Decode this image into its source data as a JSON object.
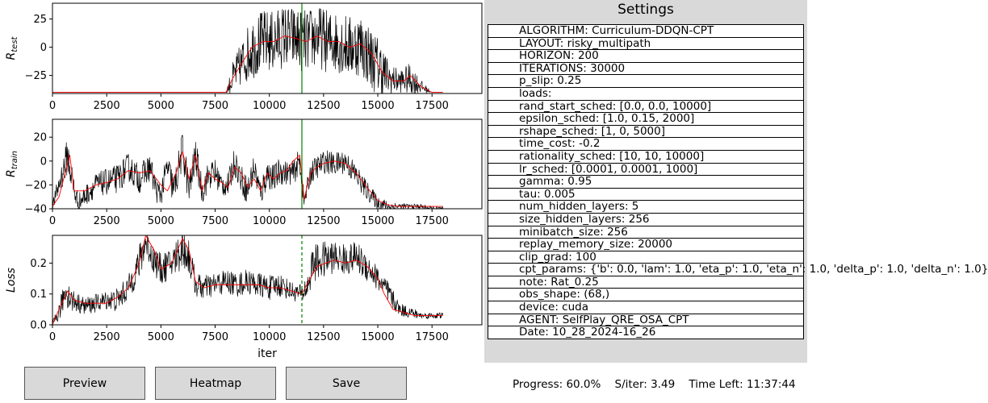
{
  "chart_data": [
    {
      "type": "line",
      "ylabel": "R_test",
      "xlim": [
        0,
        19800
      ],
      "ylim": [
        -41,
        39
      ],
      "xticks": [
        0,
        2500,
        5000,
        7500,
        10000,
        12500,
        15000,
        17500
      ],
      "yticks": [
        25,
        0,
        -25
      ],
      "marker_x": 11500,
      "marker_style": "solid",
      "series": [
        {
          "color": "#000000",
          "style": "noisy",
          "x": [
            0,
            8000,
            8300,
            8700,
            9200,
            9700,
            10200,
            10700,
            11200,
            11700,
            12200,
            12700,
            13200,
            13700,
            14200,
            14700,
            15200,
            15500,
            16000,
            16500,
            17000,
            17500,
            18000
          ],
          "y": [
            -40,
            -40,
            -28,
            -15,
            0,
            5,
            5,
            10,
            8,
            5,
            10,
            5,
            5,
            0,
            3,
            -10,
            -20,
            -28,
            -30,
            -28,
            -35,
            -40,
            -40
          ],
          "noise": [
            0,
            0,
            14,
            20,
            28,
            28,
            28,
            28,
            28,
            28,
            28,
            28,
            28,
            28,
            28,
            28,
            25,
            15,
            10,
            14,
            6,
            0,
            0
          ]
        },
        {
          "color": "#ff0000",
          "x": [
            0,
            8000,
            8300,
            8700,
            9200,
            9700,
            10200,
            10700,
            11200,
            11700,
            12200,
            12700,
            13200,
            13700,
            14200,
            14700,
            15200,
            15700,
            16200,
            16500,
            17000,
            17500,
            18000
          ],
          "y": [
            -40,
            -40,
            -28,
            -15,
            0,
            5,
            5,
            10,
            8,
            5,
            10,
            5,
            5,
            0,
            3,
            -5,
            -22,
            -30,
            -30,
            -25,
            -35,
            -40,
            -40
          ]
        }
      ]
    },
    {
      "type": "line",
      "ylabel": "R_train",
      "xlim": [
        0,
        19800
      ],
      "ylim": [
        -40,
        35
      ],
      "xticks": [
        0,
        2500,
        5000,
        7500,
        10000,
        12500,
        15000,
        17500
      ],
      "yticks": [
        20,
        0,
        -20,
        -40
      ],
      "marker_x": 11500,
      "marker_style": "solid",
      "series": [
        {
          "color": "#000000",
          "style": "noisy",
          "x": [
            0,
            300,
            700,
            1000,
            1200,
            2000,
            3000,
            3500,
            4000,
            4500,
            4800,
            5000,
            5300,
            5600,
            6000,
            6300,
            6600,
            6900,
            7200,
            7500,
            7800,
            8100,
            8400,
            8700,
            9000,
            9300,
            9600,
            9900,
            10200,
            10500,
            10800,
            11100,
            11400,
            11500,
            11600,
            11900,
            12200,
            12600,
            13000,
            13500,
            14000,
            14500,
            15000,
            15500,
            16000,
            16500,
            17000,
            17500,
            18000
          ],
          "y": [
            -38,
            -20,
            5,
            -25,
            -35,
            -20,
            -15,
            -5,
            -15,
            -5,
            -25,
            -28,
            -5,
            -25,
            10,
            -25,
            5,
            -25,
            -12,
            -10,
            -20,
            -20,
            0,
            -15,
            -25,
            -5,
            -28,
            -10,
            -15,
            -8,
            -10,
            -10,
            0,
            -15,
            -35,
            -10,
            -5,
            0,
            -3,
            0,
            -12,
            -25,
            -35,
            -38,
            -38,
            -38,
            -38,
            -40,
            -40
          ],
          "noise": [
            4,
            10,
            16,
            12,
            8,
            10,
            12,
            12,
            12,
            12,
            10,
            10,
            14,
            14,
            16,
            14,
            14,
            12,
            12,
            12,
            10,
            10,
            12,
            12,
            12,
            12,
            12,
            12,
            12,
            12,
            10,
            10,
            12,
            10,
            6,
            10,
            10,
            10,
            10,
            10,
            10,
            8,
            6,
            4,
            3,
            2,
            2,
            2,
            2
          ]
        },
        {
          "color": "#ff0000",
          "x": [
            0,
            300,
            800,
            1000,
            1500,
            2000,
            2500,
            3000,
            3500,
            4000,
            4500,
            5000,
            5300,
            5700,
            6000,
            6300,
            6600,
            6900,
            7200,
            7500,
            7800,
            8100,
            8400,
            8700,
            9000,
            9300,
            9600,
            9900,
            10200,
            10500,
            10800,
            11100,
            11400,
            11600,
            11900,
            12200,
            12500,
            13000,
            13500,
            14000,
            14500,
            15000,
            15500,
            16000,
            17000,
            18000
          ],
          "y": [
            -38,
            -30,
            5,
            -25,
            -25,
            -20,
            -18,
            -15,
            -8,
            -10,
            -8,
            -20,
            -25,
            -10,
            8,
            -15,
            5,
            -25,
            -10,
            -15,
            -18,
            -22,
            -5,
            -10,
            -22,
            -15,
            -25,
            -10,
            -15,
            -10,
            -8,
            0,
            5,
            -32,
            -10,
            -5,
            -2,
            0,
            -2,
            -10,
            -22,
            -33,
            -37,
            -38,
            -38,
            -38
          ]
        }
      ]
    },
    {
      "type": "line",
      "ylabel": "Loss",
      "xlabel": "iter",
      "xlim": [
        0,
        19800
      ],
      "ylim": [
        0,
        0.29
      ],
      "xticks": [
        0,
        2500,
        5000,
        7500,
        10000,
        12500,
        15000,
        17500
      ],
      "yticks": [
        0.0,
        0.1,
        0.2
      ],
      "marker_x": 11500,
      "marker_style": "dashed",
      "series": [
        {
          "color": "#000000",
          "style": "noisy",
          "x": [
            0,
            300,
            600,
            900,
            1200,
            1500,
            2000,
            2500,
            3000,
            3500,
            4000,
            4300,
            4600,
            5000,
            5500,
            6000,
            6300,
            6600,
            7000,
            7500,
            8000,
            8500,
            9000,
            9500,
            10000,
            10500,
            11000,
            11500,
            11800,
            12000,
            12500,
            13000,
            13500,
            14000,
            14500,
            15000,
            15500,
            16000,
            16500,
            17000,
            17500,
            18000
          ],
          "y": [
            0.0,
            0.04,
            0.11,
            0.08,
            0.07,
            0.06,
            0.07,
            0.08,
            0.08,
            0.12,
            0.2,
            0.27,
            0.22,
            0.18,
            0.2,
            0.25,
            0.22,
            0.13,
            0.12,
            0.13,
            0.14,
            0.13,
            0.14,
            0.13,
            0.12,
            0.13,
            0.11,
            0.1,
            0.13,
            0.2,
            0.21,
            0.22,
            0.21,
            0.22,
            0.19,
            0.15,
            0.1,
            0.05,
            0.04,
            0.03,
            0.03,
            0.03
          ],
          "noise": [
            0.01,
            0.03,
            0.05,
            0.04,
            0.03,
            0.03,
            0.03,
            0.03,
            0.04,
            0.04,
            0.06,
            0.05,
            0.05,
            0.05,
            0.05,
            0.07,
            0.06,
            0.04,
            0.04,
            0.04,
            0.04,
            0.04,
            0.04,
            0.04,
            0.04,
            0.04,
            0.03,
            0.03,
            0.05,
            0.06,
            0.06,
            0.05,
            0.05,
            0.05,
            0.05,
            0.04,
            0.04,
            0.02,
            0.02,
            0.01,
            0.01,
            0.01
          ]
        },
        {
          "color": "#ff0000",
          "x": [
            0,
            300,
            700,
            1000,
            1500,
            2000,
            2500,
            3000,
            3500,
            4000,
            4300,
            4700,
            5000,
            5500,
            6000,
            6300,
            6600,
            7000,
            7500,
            8000,
            8500,
            9000,
            9500,
            10000,
            10500,
            11000,
            11500,
            11800,
            12200,
            12600,
            13000,
            13500,
            14000,
            14500,
            15000,
            15300,
            15700,
            16200,
            16700,
            17200,
            18000
          ],
          "y": [
            0.0,
            0.05,
            0.11,
            0.08,
            0.07,
            0.07,
            0.07,
            0.09,
            0.12,
            0.2,
            0.29,
            0.24,
            0.18,
            0.2,
            0.28,
            0.24,
            0.14,
            0.12,
            0.13,
            0.13,
            0.13,
            0.13,
            0.13,
            0.12,
            0.12,
            0.11,
            0.1,
            0.14,
            0.19,
            0.2,
            0.21,
            0.2,
            0.21,
            0.19,
            0.15,
            0.1,
            0.05,
            0.04,
            0.03,
            0.03,
            0.03
          ]
        }
      ]
    }
  ],
  "settings": {
    "title": "Settings",
    "rows": [
      "ALGORITHM: Curriculum-DDQN-CPT",
      "LAYOUT: risky_multipath",
      "HORIZON: 200",
      "ITERATIONS: 30000",
      "p_slip: 0.25",
      "loads:",
      "rand_start_sched: [0.0, 0.0, 10000]",
      "epsilon_sched: [1.0, 0.15, 2000]",
      "rshape_sched: [1, 0, 5000]",
      "time_cost: -0.2",
      "rationality_sched: [10, 10, 10000]",
      "lr_sched: [0.0001, 0.0001, 1000]",
      "gamma: 0.95",
      "tau: 0.005",
      "num_hidden_layers: 5",
      "size_hidden_layers: 256",
      "minibatch_size: 256",
      "replay_memory_size: 20000",
      "clip_grad: 100",
      "cpt_params: {'b': 0.0, 'lam': 1.0, 'eta_p': 1.0, 'eta_n': 1.0, 'delta_p': 1.0, 'delta_n': 1.0}",
      "note: Rat_0.25",
      "obs_shape: (68,)",
      "device: cuda",
      "AGENT: SelfPlay_QRE_OSA_CPT",
      "Date: 10_28_2024-16_26"
    ]
  },
  "buttons": {
    "preview": "Preview",
    "heatmap": "Heatmap",
    "save": "Save"
  },
  "status": {
    "progress": "Progress: 60.0%",
    "s_per_iter": "S/iter: 3.49",
    "time_left": "Time Left: 11:37:44"
  }
}
